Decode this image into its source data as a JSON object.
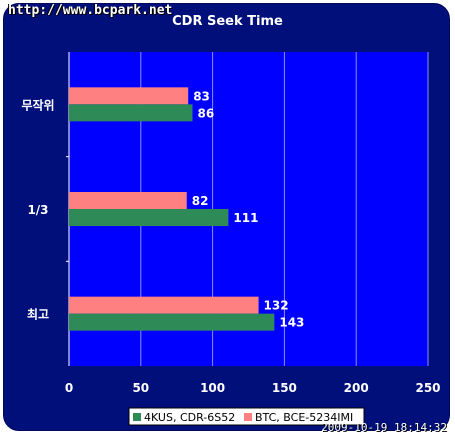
{
  "watermark": "http://www.bcpark.net",
  "timestamp": "2009-10-19 18:14:32",
  "colors": {
    "frame": "#000f7a",
    "plot_bg": "#0000ff",
    "series1": "#2e8b57",
    "series2": "#ff8080"
  },
  "chart_data": {
    "type": "bar",
    "orientation": "horizontal",
    "title": "CDR Seek Time",
    "xlabel": "",
    "ylabel": "",
    "categories": [
      "무작위",
      "1/3",
      "최고"
    ],
    "series": [
      {
        "name": "4KUS, CDR-6S52",
        "values": [
          86,
          111,
          143
        ],
        "color": "#2e8b57"
      },
      {
        "name": "BTC, BCE-5234IMI",
        "values": [
          83,
          82,
          132
        ],
        "color": "#ff8080"
      }
    ],
    "xlim": [
      0,
      250
    ],
    "xticks": [
      0,
      50,
      100,
      150,
      200,
      250
    ],
    "grid": true,
    "legend": "bottom",
    "data_labels": true
  }
}
